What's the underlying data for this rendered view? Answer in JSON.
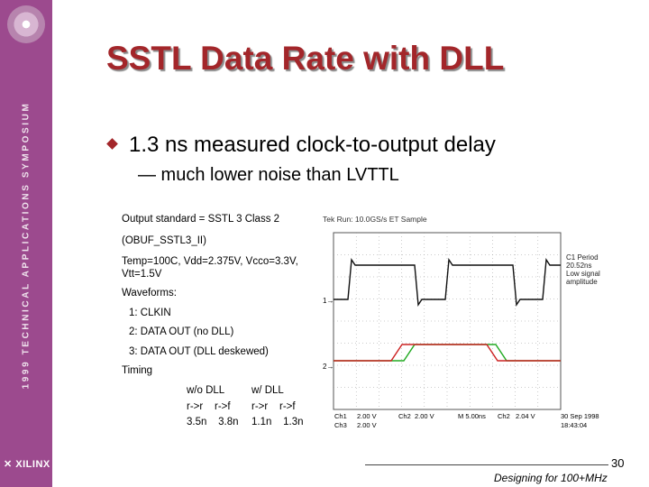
{
  "slide": {
    "title": "SSTL Data Rate with DLL",
    "bullet": "1.3 ns measured clock-to-output delay",
    "sub_bullet": "— much lower noise than LVTTL"
  },
  "sidebar": {
    "vertical_text": "1999 TECHNICAL APPLICATIONS SYMPOSIUM",
    "logo_text": "XILINX",
    "color": "#9c4a8e"
  },
  "notes": {
    "lines": [
      "Output standard = SSTL 3 Class 2",
      "(OBUF_SSTL3_II)",
      "Temp=100C, Vdd=2.375V, Vcco=3.3V,",
      "Vtt=1.5V",
      "Waveforms:",
      "1: CLKIN",
      "2: DATA OUT (no DLL)",
      "3: DATA OUT (DLL deskewed)",
      "Timing"
    ],
    "timing": {
      "col1_header": "w/o DLL",
      "col2_header": "w/ DLL",
      "col1_sub": "r->r    r->f",
      "col2_sub": "r->r    r->f",
      "col1_vals": "3.5n    3.8n",
      "col2_vals": "1.1n    1.3n"
    }
  },
  "scope": {
    "header": "Tek Run: 10.0GS/s ET Sample",
    "side_label1": "C1 Period",
    "side_label2": "20.52ns",
    "side_label3": "Low signal",
    "side_label4": "amplitude",
    "marker1": "1→",
    "marker2": "2→",
    "bottom1": "Ch1",
    "bottom1_val": "2.00 V",
    "bottom2": "Ch2",
    "bottom2_val": "2.00 V",
    "bottom3": "M 5.00ns",
    "bottom4": "Ch2",
    "bottom4_val": "2.04 V",
    "bottom5": "Ch3",
    "bottom5_val": "2.00 V",
    "date": "30 Sep 1998",
    "time": "18:43:04",
    "trace_colors": {
      "ch1": "#111111",
      "ch2": "#22aa22",
      "ch3": "#cc2222",
      "grid": "#9a9a9a"
    }
  },
  "footer": {
    "page_number": "30",
    "text": "Designing for 100+MHz"
  }
}
